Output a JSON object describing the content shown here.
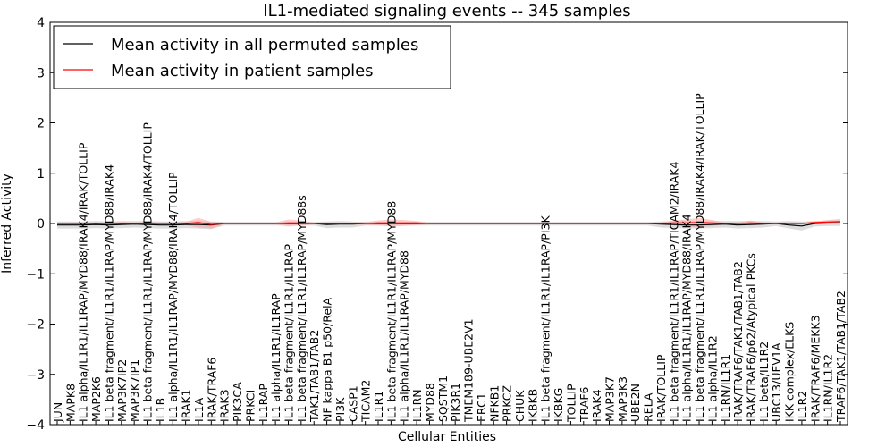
{
  "chart_data": {
    "type": "line",
    "title": "IL1-mediated signaling events -- 345 samples",
    "xlabel": "Cellular Entities",
    "ylabel": "Inferred Activity",
    "ylim": [
      -4,
      4
    ],
    "yticks": [
      -4,
      -3,
      -2,
      -1,
      0,
      1,
      2,
      3,
      4
    ],
    "legend": {
      "placement": "top-left",
      "entries": [
        {
          "label": "Mean activity in all permuted samples",
          "color": "#000000"
        },
        {
          "label": "Mean activity in patient samples",
          "color": "#ff0000"
        }
      ]
    },
    "categories": [
      "JUN",
      "MAPK8",
      "IL1 alpha/IL1R1/IL1RAP/MYD88/IRAK4/IRAK/TOLLIP",
      "MAP2K6",
      "IL1 beta fragment/IL1R1/IL1RAP/MYD88/IRAK4",
      "MAP3K7IP2",
      "MAP3K7IP1",
      "IL1 beta fragment/IL1R1/IL1RAP/MYD88/IRAK4/TOLLIP",
      "IL1B",
      "IL1 alpha/IL1R1/IL1RAP/MYD88/IRAK4/TOLLIP",
      "IRAK1",
      "IL1A",
      "IRAK/TRAF6",
      "IRAK3",
      "PIK3CA",
      "PRKCI",
      "IL1RAP",
      "IL1 alpha/IL1R1/IL1RAP",
      "IL1 beta fragment/IL1R1/IL1RAP",
      "IL1 beta fragment/IL1R1/IL1RAP/MYD88s",
      "TAK1/TAB1/TAB2",
      "NF kappa B1 p50/RelA",
      "PI3K",
      "CASP1",
      "TICAM2",
      "IL1R1",
      "IL1 beta fragment/IL1R1/IL1RAP/MYD88",
      "IL1 alpha/IL1R1/IL1RAP/MYD88",
      "IL1RN",
      "MYD88",
      "SQSTM1",
      "PIK3R1",
      "TMEM189-UBE2V1",
      "ERC1",
      "NFKB1",
      "PRKCZ",
      "CHUK",
      "IKBKB",
      "IL1 beta fragment/IL1R1/IL1RAP/PI3K",
      "IKBKG",
      "TOLLIP",
      "TRAF6",
      "IRAK4",
      "MAP3K7",
      "MAP3K3",
      "UBE2N",
      "RELA",
      "IRAK/TOLLIP",
      "IL1 beta fragment/IL1R1/IL1RAP/TICAM2/IRAK4",
      "IL1 alpha/IL1R1/IL1RAP/MYD88/IRAK4",
      "IL1 beta fragment/IL1R1/IL1RAP/MYD88/IRAK4/IRAK/TOLLIP",
      "IL1 alpha/IL1R2",
      "IL1RN/IL1R1",
      "IRAK/TRAF6/TAK1/TAB1/TAB2",
      "IRAK/TRAF6/p62/Atypical PKCs",
      "IL1 beta/IL1R2",
      "UBC13/UEV1A",
      "IKK complex/ELKS",
      "IL1R2",
      "IRAK/TRAF6/MEKK3",
      "IL1RN/IL1R2",
      "TRAF6/TAK1/TAB1/TAB2"
    ],
    "series": [
      {
        "name": "Mean activity in all permuted samples",
        "color": "#000000",
        "values": [
          -0.03,
          -0.03,
          -0.03,
          -0.02,
          -0.03,
          -0.02,
          -0.01,
          -0.02,
          -0.03,
          -0.03,
          -0.02,
          -0.02,
          -0.03,
          0.0,
          0.0,
          0.0,
          0.0,
          0.0,
          0.0,
          0.0,
          0.0,
          -0.02,
          -0.01,
          -0.01,
          0.0,
          0.0,
          0.0,
          0.0,
          0.0,
          0.0,
          0.0,
          0.0,
          0.0,
          0.0,
          0.0,
          0.0,
          0.0,
          0.0,
          0.0,
          0.0,
          0.0,
          0.0,
          0.0,
          0.0,
          0.0,
          0.0,
          0.0,
          -0.01,
          -0.02,
          -0.03,
          -0.03,
          -0.02,
          -0.01,
          -0.03,
          -0.02,
          -0.01,
          0.0,
          -0.03,
          -0.05,
          0.0,
          0.01,
          0.01
        ]
      },
      {
        "name": "Mean activity in patient samples",
        "color": "#ff0000",
        "values": [
          0.0,
          0.0,
          0.0,
          0.0,
          0.0,
          0.0,
          0.0,
          0.0,
          0.0,
          0.0,
          0.0,
          0.02,
          -0.02,
          0.0,
          0.0,
          0.0,
          0.0,
          0.0,
          0.01,
          0.01,
          0.0,
          0.0,
          0.0,
          0.0,
          0.0,
          0.01,
          0.01,
          0.01,
          0.01,
          0.0,
          0.0,
          0.0,
          0.0,
          0.0,
          0.0,
          0.0,
          0.0,
          0.0,
          0.0,
          0.0,
          0.0,
          0.0,
          0.0,
          0.0,
          0.0,
          0.0,
          0.0,
          0.0,
          0.01,
          0.01,
          0.02,
          0.01,
          0.0,
          0.0,
          0.01,
          0.0,
          0.0,
          0.0,
          0.0,
          0.02,
          0.03,
          0.04
        ]
      }
    ],
    "bands": [
      {
        "name": "permuted spread",
        "color": "#bbbbbb",
        "upper": [
          0.04,
          0.04,
          0.04,
          0.05,
          0.04,
          0.05,
          0.05,
          0.05,
          0.04,
          0.04,
          0.05,
          0.05,
          0.04,
          0.03,
          0.03,
          0.03,
          0.03,
          0.03,
          0.03,
          0.03,
          0.03,
          0.04,
          0.05,
          0.04,
          0.03,
          0.03,
          0.03,
          0.03,
          0.03,
          0.03,
          0.03,
          0.03,
          0.03,
          0.03,
          0.03,
          0.03,
          0.03,
          0.03,
          0.03,
          0.03,
          0.03,
          0.03,
          0.03,
          0.03,
          0.03,
          0.03,
          0.03,
          0.04,
          0.05,
          0.05,
          0.05,
          0.05,
          0.05,
          0.05,
          0.05,
          0.05,
          0.04,
          0.05,
          0.04,
          0.05,
          0.06,
          0.06
        ],
        "lower": [
          -0.1,
          -0.1,
          -0.1,
          -0.09,
          -0.1,
          -0.09,
          -0.08,
          -0.09,
          -0.1,
          -0.1,
          -0.09,
          -0.1,
          -0.11,
          -0.04,
          -0.04,
          -0.04,
          -0.04,
          -0.04,
          -0.04,
          -0.04,
          -0.04,
          -0.09,
          -0.08,
          -0.08,
          -0.04,
          -0.04,
          -0.04,
          -0.04,
          -0.04,
          -0.04,
          -0.04,
          -0.04,
          -0.04,
          -0.04,
          -0.04,
          -0.04,
          -0.04,
          -0.04,
          -0.04,
          -0.04,
          -0.04,
          -0.04,
          -0.04,
          -0.04,
          -0.04,
          -0.04,
          -0.04,
          -0.08,
          -0.09,
          -0.1,
          -0.1,
          -0.09,
          -0.08,
          -0.1,
          -0.09,
          -0.08,
          -0.05,
          -0.1,
          -0.14,
          -0.06,
          -0.05,
          -0.05
        ]
      },
      {
        "name": "patient spread",
        "color": "#ff9999",
        "upper": [
          0.02,
          0.02,
          0.02,
          0.02,
          0.02,
          0.03,
          0.02,
          0.03,
          0.02,
          0.02,
          0.03,
          0.11,
          0.03,
          0.02,
          0.02,
          0.02,
          0.02,
          0.02,
          0.08,
          0.06,
          0.02,
          0.02,
          0.02,
          0.02,
          0.03,
          0.06,
          0.08,
          0.07,
          0.05,
          0.02,
          0.02,
          0.02,
          0.02,
          0.02,
          0.02,
          0.02,
          0.02,
          0.02,
          0.02,
          0.02,
          0.02,
          0.02,
          0.02,
          0.02,
          0.02,
          0.02,
          0.02,
          0.02,
          0.06,
          0.08,
          0.11,
          0.07,
          0.02,
          0.02,
          0.06,
          0.02,
          0.02,
          0.02,
          0.02,
          0.04,
          0.07,
          0.09
        ],
        "lower": [
          -0.02,
          -0.02,
          -0.02,
          -0.02,
          -0.02,
          -0.03,
          -0.02,
          -0.03,
          -0.02,
          -0.02,
          -0.03,
          -0.08,
          -0.1,
          -0.02,
          -0.02,
          -0.02,
          -0.02,
          -0.02,
          -0.06,
          -0.04,
          -0.02,
          -0.02,
          -0.02,
          -0.02,
          -0.03,
          -0.04,
          -0.06,
          -0.05,
          -0.03,
          -0.02,
          -0.02,
          -0.02,
          -0.02,
          -0.02,
          -0.02,
          -0.02,
          -0.02,
          -0.02,
          -0.02,
          -0.02,
          -0.02,
          -0.02,
          -0.02,
          -0.02,
          -0.02,
          -0.02,
          -0.02,
          -0.02,
          -0.04,
          -0.06,
          -0.08,
          -0.05,
          -0.02,
          -0.02,
          -0.04,
          -0.02,
          -0.02,
          -0.02,
          -0.02,
          -0.01,
          -0.01,
          -0.01
        ]
      }
    ]
  }
}
